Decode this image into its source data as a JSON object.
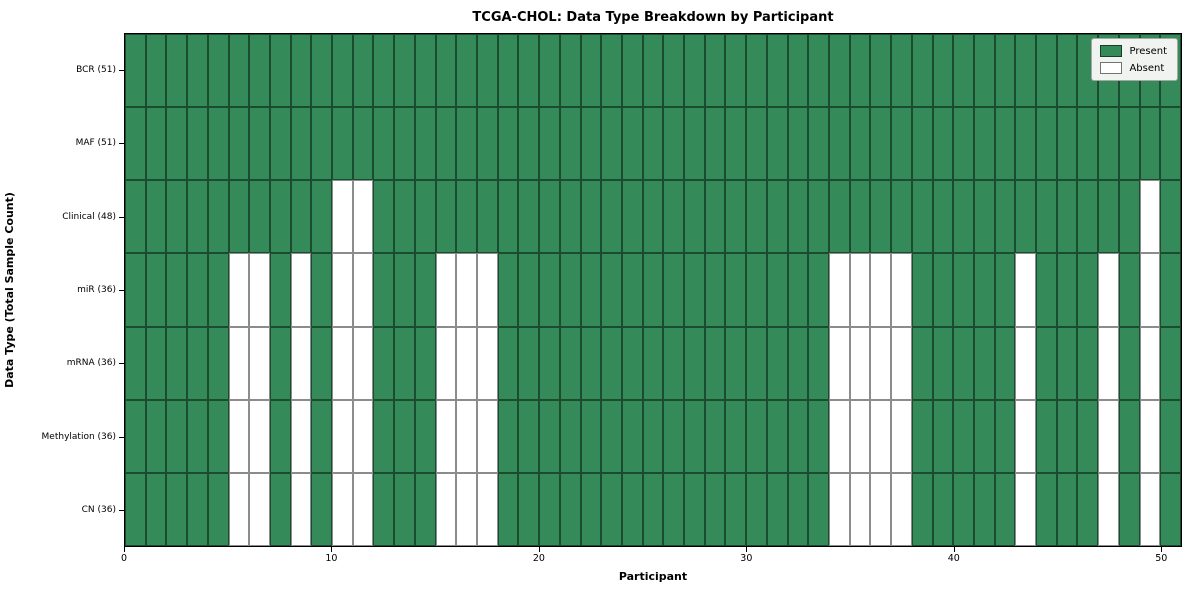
{
  "title": "TCGA-CHOL: Data Type Breakdown by Participant",
  "chart_data": {
    "type": "heatmap",
    "title": "TCGA-CHOL: Data Type Breakdown by Participant",
    "xlabel": "Participant",
    "ylabel": "Data Type (Total Sample Count)",
    "n_participants": 51,
    "x_range": [
      0,
      51
    ],
    "x_ticks": [
      0,
      10,
      20,
      30,
      40,
      50
    ],
    "grid": true,
    "rows": [
      {
        "label": "BCR (51)",
        "total": 51,
        "absent_participants": []
      },
      {
        "label": "MAF (51)",
        "total": 51,
        "absent_participants": []
      },
      {
        "label": "Clinical (48)",
        "total": 48,
        "absent_participants": [
          10,
          11,
          49
        ]
      },
      {
        "label": "miR (36)",
        "total": 36,
        "absent_participants": [
          5,
          6,
          8,
          10,
          11,
          15,
          16,
          17,
          34,
          35,
          36,
          37,
          43,
          47,
          49
        ]
      },
      {
        "label": "mRNA (36)",
        "total": 36,
        "absent_participants": [
          5,
          6,
          8,
          10,
          11,
          15,
          16,
          17,
          34,
          35,
          36,
          37,
          43,
          47,
          49
        ]
      },
      {
        "label": "Methylation (36)",
        "total": 36,
        "absent_participants": [
          5,
          6,
          8,
          10,
          11,
          15,
          16,
          17,
          34,
          35,
          36,
          37,
          43,
          47,
          49
        ]
      },
      {
        "label": "CN (36)",
        "total": 36,
        "absent_participants": [
          5,
          6,
          8,
          10,
          11,
          15,
          16,
          17,
          34,
          35,
          36,
          37,
          43,
          47,
          49
        ]
      }
    ],
    "legend": {
      "position": "upper-right",
      "entries": [
        {
          "label": "Present",
          "color": "#348a58"
        },
        {
          "label": "Absent",
          "color": "#ffffff"
        }
      ]
    },
    "colors": {
      "present": "#348a58",
      "absent": "#ffffff",
      "gridline": "rgba(0,0,0,0.45)",
      "axis_border": "#000000"
    }
  }
}
